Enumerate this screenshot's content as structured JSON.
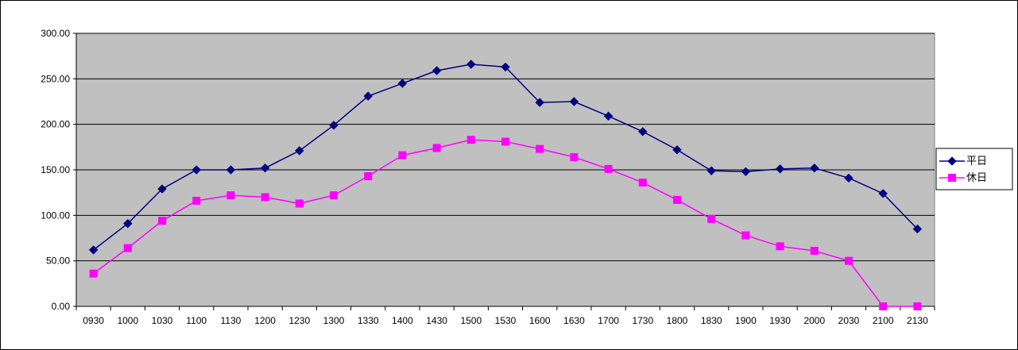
{
  "chart_data": {
    "type": "line",
    "title": "",
    "xlabel": "",
    "ylabel": "",
    "ylim": [
      0,
      300
    ],
    "yticks": [
      "0.00",
      "50.00",
      "100.00",
      "150.00",
      "200.00",
      "250.00",
      "300.00"
    ],
    "categories": [
      "0930",
      "1000",
      "1030",
      "1100",
      "1130",
      "1200",
      "1230",
      "1300",
      "1330",
      "1400",
      "1430",
      "1500",
      "1530",
      "1600",
      "1630",
      "1700",
      "1730",
      "1800",
      "1830",
      "1900",
      "1930",
      "2000",
      "2030",
      "2100",
      "2130"
    ],
    "grid": "horizontal",
    "legend_position": "right",
    "plot_background": "#c0c0c0",
    "series": [
      {
        "name": "平日",
        "color": "#000080",
        "marker": "diamond",
        "values": [
          62,
          91,
          129,
          150,
          150,
          152,
          171,
          199,
          231,
          245,
          259,
          266,
          263,
          224,
          225,
          209,
          192,
          172,
          149,
          148,
          151,
          152,
          141,
          124,
          85
        ]
      },
      {
        "name": "休日",
        "color": "#ff00ff",
        "marker": "square",
        "values": [
          36,
          64,
          94,
          116,
          122,
          120,
          113,
          122,
          143,
          166,
          174,
          183,
          181,
          173,
          164,
          151,
          136,
          117,
          96,
          78,
          66,
          61,
          50,
          0,
          0
        ]
      }
    ]
  }
}
